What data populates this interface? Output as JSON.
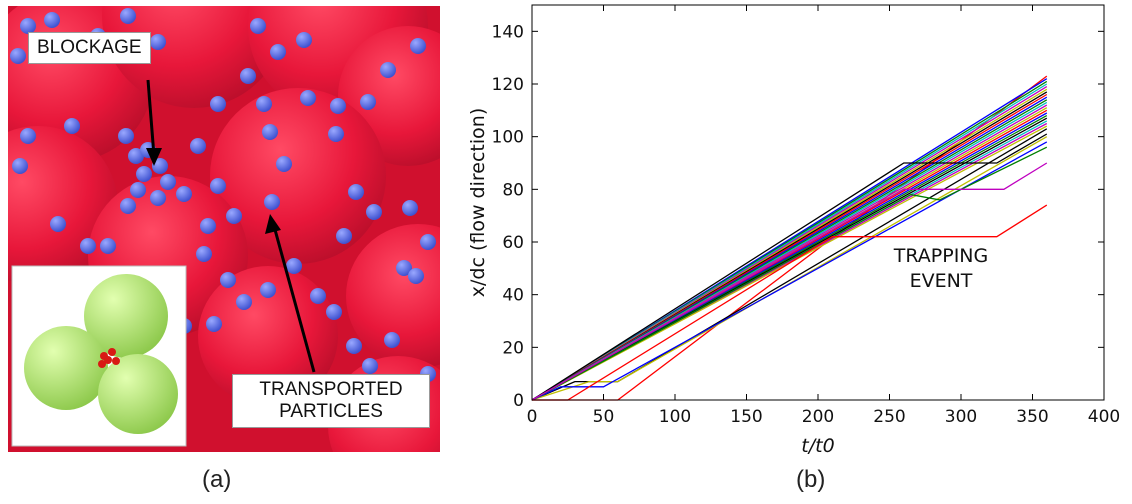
{
  "panel_a": {
    "blockage_label": "BLOCKAGE",
    "transport_label_line1": "TRANSPORTED",
    "transport_label_line2": "PARTICLES",
    "sublabel": "(a)",
    "colors": {
      "grain": "#e8173a",
      "particle": "#5b6ee8",
      "inset_grain": "#a9dd5c",
      "inset_particle": "#d81a14"
    }
  },
  "panel_b": {
    "sublabel": "(b)",
    "annotation_line1": "TRAPPING",
    "annotation_line2": "EVENT"
  },
  "chart_data": {
    "type": "line",
    "xlabel": "t/t0",
    "ylabel": "x/dc (flow direction)",
    "xlim": [
      0,
      400
    ],
    "ylim": [
      0,
      150
    ],
    "xticks": [
      "0",
      "50",
      "100",
      "150",
      "200",
      "250",
      "300",
      "350",
      "400"
    ],
    "yticks": [
      "0",
      "20",
      "40",
      "60",
      "80",
      "100",
      "120",
      "140"
    ],
    "grid": false,
    "series": [
      {
        "color": "#ff0000",
        "x": [
          0,
          60,
          360
        ],
        "y": [
          0,
          0,
          123
        ]
      },
      {
        "color": "#0000ff",
        "x": [
          0,
          360
        ],
        "y": [
          0,
          122
        ]
      },
      {
        "color": "#008000",
        "x": [
          0,
          360
        ],
        "y": [
          0,
          121
        ]
      },
      {
        "color": "#00bfbf",
        "x": [
          0,
          360
        ],
        "y": [
          0,
          120
        ]
      },
      {
        "color": "#bf00bf",
        "x": [
          0,
          360
        ],
        "y": [
          0,
          119
        ]
      },
      {
        "color": "#bfbf00",
        "x": [
          0,
          360
        ],
        "y": [
          0,
          118
        ]
      },
      {
        "color": "#000000",
        "x": [
          0,
          360
        ],
        "y": [
          0,
          117
        ]
      },
      {
        "color": "#ff0000",
        "x": [
          0,
          360
        ],
        "y": [
          0,
          116
        ]
      },
      {
        "color": "#0000ff",
        "x": [
          0,
          360
        ],
        "y": [
          0,
          115
        ]
      },
      {
        "color": "#008000",
        "x": [
          0,
          360
        ],
        "y": [
          0,
          114
        ]
      },
      {
        "color": "#00bfbf",
        "x": [
          0,
          360
        ],
        "y": [
          0,
          113
        ]
      },
      {
        "color": "#bf00bf",
        "x": [
          0,
          360
        ],
        "y": [
          0,
          112
        ]
      },
      {
        "color": "#bfbf00",
        "x": [
          0,
          360
        ],
        "y": [
          0,
          111
        ]
      },
      {
        "color": "#ff0000",
        "x": [
          0,
          360
        ],
        "y": [
          0,
          110
        ]
      },
      {
        "color": "#0000ff",
        "x": [
          0,
          360
        ],
        "y": [
          0,
          109
        ]
      },
      {
        "color": "#008000",
        "x": [
          0,
          360
        ],
        "y": [
          0,
          108
        ]
      },
      {
        "color": "#000000",
        "x": [
          0,
          360
        ],
        "y": [
          0,
          107
        ]
      },
      {
        "color": "#00bfbf",
        "x": [
          0,
          360
        ],
        "y": [
          0,
          106
        ]
      },
      {
        "color": "#bf00bf",
        "x": [
          0,
          360
        ],
        "y": [
          0,
          105
        ]
      },
      {
        "color": "#bfbf00",
        "x": [
          0,
          360
        ],
        "y": [
          0,
          104
        ]
      },
      {
        "color": "#000000",
        "x": [
          0,
          30,
          60,
          360
        ],
        "y": [
          0,
          7,
          7,
          103
        ]
      },
      {
        "color": "#bfbf00",
        "x": [
          0,
          40,
          60,
          360
        ],
        "y": [
          0,
          7,
          7,
          100
        ]
      },
      {
        "color": "#0000ff",
        "x": [
          0,
          20,
          50,
          360
        ],
        "y": [
          0,
          5,
          5,
          98
        ]
      },
      {
        "color": "#008000",
        "x": [
          0,
          265,
          285,
          360
        ],
        "y": [
          0,
          78,
          76,
          96
        ]
      },
      {
        "color": "#000000",
        "x": [
          0,
          260,
          325,
          360
        ],
        "y": [
          0,
          90,
          90,
          101
        ]
      },
      {
        "color": "#bf00bf",
        "x": [
          0,
          260,
          330,
          360
        ],
        "y": [
          0,
          80,
          80,
          90
        ]
      },
      {
        "color": "#ff0000",
        "x": [
          0,
          25,
          210,
          325,
          360
        ],
        "y": [
          0,
          0,
          62,
          62,
          74
        ]
      }
    ]
  }
}
